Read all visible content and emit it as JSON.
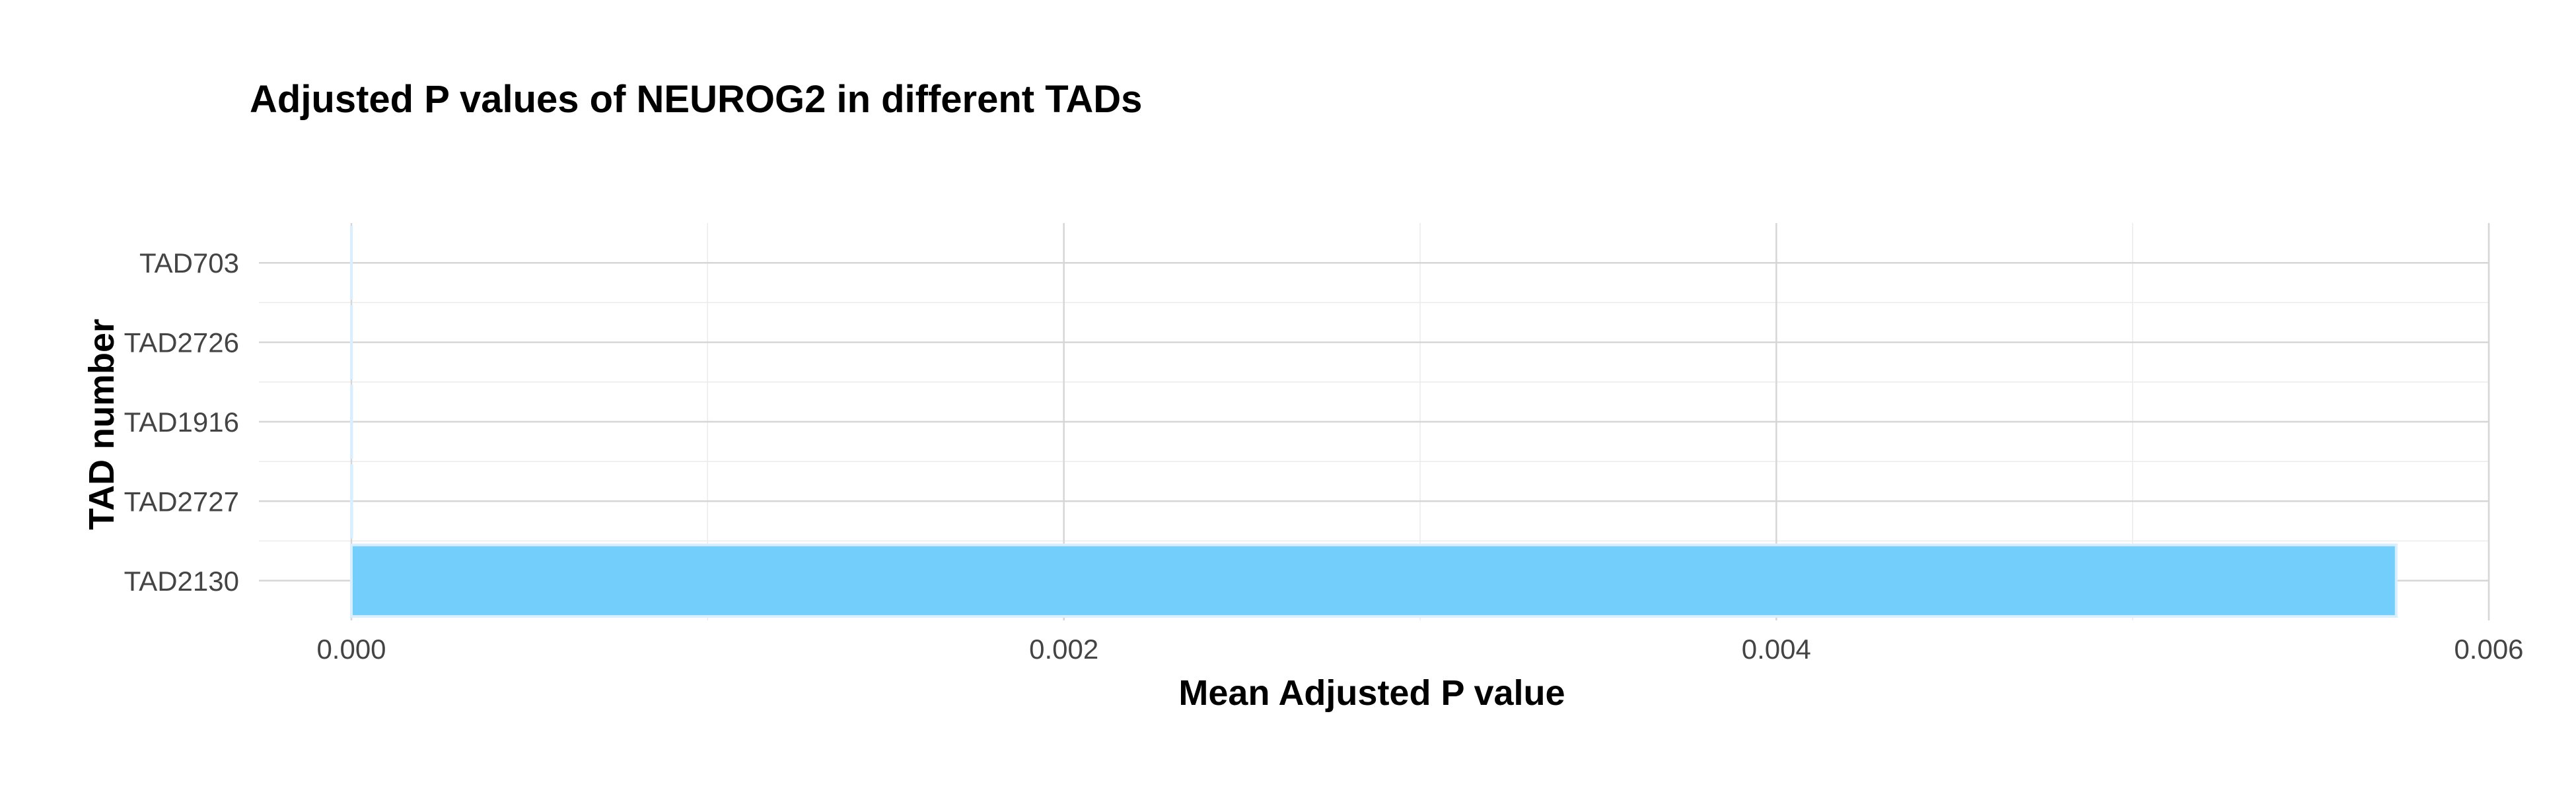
{
  "chart_data": {
    "type": "bar",
    "orientation": "horizontal",
    "title": "Adjusted P values of NEUROG2 in different TADs",
    "xlabel": "Mean Adjusted P value",
    "ylabel": "TAD number",
    "categories": [
      "TAD2130",
      "TAD2727",
      "TAD1916",
      "TAD2726",
      "TAD703"
    ],
    "values": [
      0.00574,
      1.2e-06,
      9e-07,
      6e-07,
      3e-07
    ],
    "xlim": [
      0,
      0.006
    ],
    "xticks": [
      0,
      0.002,
      0.004,
      0.006
    ],
    "xtick_labels": [
      "0.000",
      "0.002",
      "0.004",
      "0.006"
    ],
    "bar_color": "#74cefc",
    "bar_edge_color": "#d9efff",
    "grid": true,
    "legend": "none"
  }
}
